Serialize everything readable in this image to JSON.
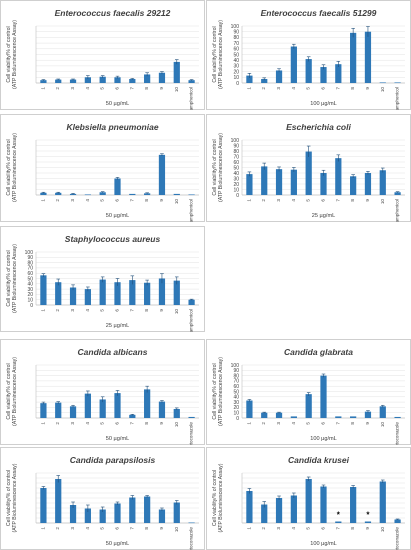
{
  "figure": {
    "ylabel_line1": "Cell viability/% of control",
    "ylabel_line2": "(ATP Bioluminescence Assay)"
  },
  "colors": {
    "bar": "#2e78b7",
    "axis": "#bfbfbf",
    "grid": "#e3e3e3",
    "text": "#404040",
    "panel_border": "#b0b0b0"
  },
  "chart_data": [
    {
      "type": "bar",
      "title": "Enterococcus faecalis 29212",
      "xlabel": "50 µg/mL",
      "categories": [
        "1",
        "2",
        "3",
        "4",
        "5",
        "6",
        "7",
        "8",
        "9",
        "10",
        "Chloramphenicol"
      ],
      "values": [
        5,
        6,
        6,
        10,
        11,
        10,
        7,
        15,
        18,
        37,
        5
      ],
      "errors": [
        1,
        1,
        1,
        3,
        2,
        2,
        1,
        3,
        2,
        4,
        1
      ],
      "markers": [],
      "ylim": [
        0,
        100
      ],
      "yticks": []
    },
    {
      "type": "bar",
      "title": "Enterococcus faecalis 51299",
      "xlabel": "100 µg/mL",
      "categories": [
        "1",
        "2",
        "3",
        "4",
        "5",
        "6",
        "7",
        "8",
        "9",
        "10",
        "Chloramphenicol"
      ],
      "values": [
        13,
        7,
        22,
        64,
        42,
        28,
        33,
        88,
        90,
        1,
        1
      ],
      "errors": [
        4,
        2,
        3,
        4,
        4,
        4,
        5,
        8,
        9,
        0,
        0
      ],
      "markers": [],
      "ylim": [
        0,
        100
      ],
      "yticks": [
        "0",
        "10",
        "20",
        "30",
        "40",
        "50",
        "60",
        "70",
        "80",
        "90",
        "100"
      ]
    },
    {
      "type": "bar",
      "title": "Klebsiella pneumoniae",
      "xlabel": "50 µg/mL",
      "categories": [
        "1",
        "2",
        "3",
        "4",
        "5",
        "6",
        "7",
        "8",
        "9",
        "10",
        "Chloramphenicol"
      ],
      "values": [
        4,
        4,
        2,
        1,
        5,
        30,
        2,
        3,
        73,
        2,
        1
      ],
      "errors": [
        1,
        1,
        1,
        0,
        1,
        2,
        0,
        1,
        2,
        0,
        0
      ],
      "markers": [],
      "ylim": [
        0,
        100
      ],
      "yticks": []
    },
    {
      "type": "bar",
      "title": "Escherichia coli",
      "xlabel": "25 µg/mL",
      "categories": [
        "1",
        "2",
        "3",
        "4",
        "5",
        "6",
        "7",
        "8",
        "9",
        "10",
        "Chloramphenicol"
      ],
      "values": [
        38,
        52,
        47,
        46,
        79,
        40,
        67,
        34,
        40,
        45,
        5
      ],
      "errors": [
        4,
        6,
        4,
        4,
        10,
        5,
        6,
        3,
        3,
        4,
        1
      ],
      "markers": [],
      "ylim": [
        0,
        100
      ],
      "yticks": [
        "0",
        "10",
        "20",
        "30",
        "40",
        "50",
        "60",
        "70",
        "80",
        "90",
        "100"
      ]
    },
    {
      "type": "bar",
      "title": "Staphylococcus aureus",
      "xlabel": "25 µg/mL",
      "categories": [
        "1",
        "2",
        "3",
        "4",
        "5",
        "6",
        "7",
        "8",
        "9",
        "10",
        "Chloramphenicol"
      ],
      "values": [
        56,
        43,
        33,
        30,
        48,
        43,
        47,
        42,
        50,
        46,
        10
      ],
      "errors": [
        3,
        6,
        5,
        4,
        5,
        7,
        8,
        5,
        9,
        7,
        1
      ],
      "markers": [],
      "ylim": [
        0,
        100
      ],
      "yticks": [
        "0",
        "10",
        "20",
        "30",
        "40",
        "50",
        "60",
        "70",
        "80",
        "90",
        "100"
      ]
    },
    {
      "type": "bar",
      "title": "Candida albicans",
      "xlabel": "50 µg/mL",
      "categories": [
        "1",
        "2",
        "3",
        "4",
        "5",
        "6",
        "7",
        "8",
        "9",
        "10",
        "Ketoconazole"
      ],
      "values": [
        28,
        29,
        22,
        46,
        35,
        47,
        6,
        54,
        31,
        17,
        2
      ],
      "errors": [
        2,
        2,
        2,
        5,
        5,
        5,
        1,
        6,
        2,
        2,
        0
      ],
      "markers": [],
      "ylim": [
        0,
        100
      ],
      "yticks": []
    },
    {
      "type": "bar",
      "title": "Candida glabrata",
      "xlabel": "100 µg/mL",
      "categories": [
        "1",
        "2",
        "3",
        "4",
        "5",
        "6",
        "7",
        "8",
        "9",
        "10",
        "Ketoconazole"
      ],
      "values": [
        33,
        10,
        10,
        3,
        45,
        80,
        3,
        3,
        12,
        22,
        2
      ],
      "errors": [
        2,
        1,
        1,
        0,
        3,
        3,
        0,
        0,
        2,
        2,
        0
      ],
      "markers": [],
      "ylim": [
        0,
        100
      ],
      "yticks": [
        "0",
        "10",
        "20",
        "30",
        "40",
        "50",
        "60",
        "70",
        "80",
        "90",
        "100"
      ]
    },
    {
      "type": "bar",
      "title": "Candida parapsilosis",
      "xlabel": "50 µg/mL",
      "categories": [
        "1",
        "2",
        "3",
        "4",
        "5",
        "6",
        "7",
        "8",
        "9",
        "10",
        "Ketoconazole"
      ],
      "values": [
        70,
        88,
        36,
        29,
        27,
        39,
        51,
        53,
        27,
        41,
        1
      ],
      "errors": [
        3,
        7,
        6,
        7,
        5,
        3,
        4,
        2,
        3,
        4,
        0
      ],
      "markers": [],
      "ylim": [
        0,
        100
      ],
      "yticks": []
    },
    {
      "type": "bar",
      "title": "Candida krusei",
      "xlabel": "100 µg/mL",
      "categories": [
        "1",
        "2",
        "3",
        "4",
        "5",
        "6",
        "7",
        "8",
        "9",
        "10",
        "Ketoconazole"
      ],
      "values": [
        64,
        37,
        50,
        55,
        88,
        73,
        3,
        72,
        3,
        83,
        7
      ],
      "errors": [
        5,
        6,
        4,
        5,
        4,
        3,
        0,
        3,
        0,
        3,
        1
      ],
      "markers": [
        {
          "index": 6,
          "value": 17,
          "symbol": "*"
        },
        {
          "index": 8,
          "value": 17,
          "symbol": "*"
        }
      ],
      "ylim": [
        0,
        100
      ],
      "yticks": []
    }
  ]
}
